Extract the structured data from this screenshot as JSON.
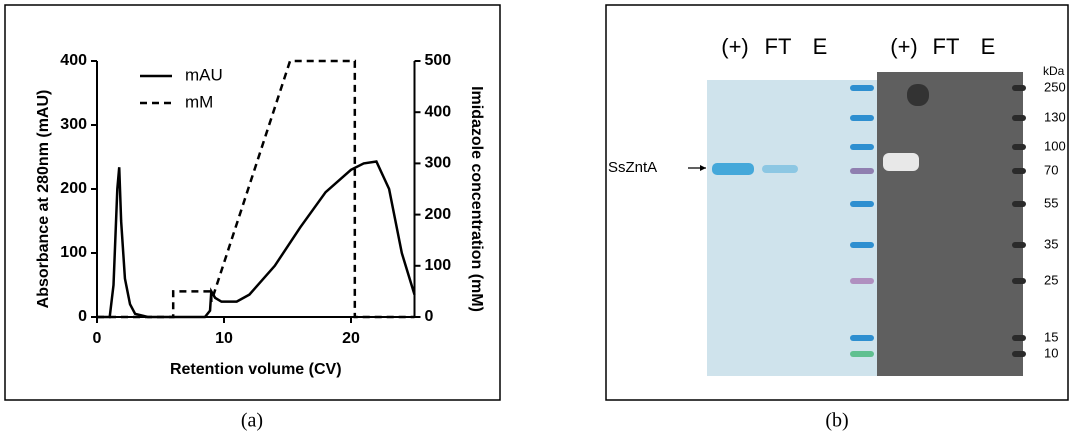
{
  "chart_data": {
    "type": "line",
    "x_label": "Retention volume (CV)",
    "y_label": "Absorbance at 280nm (mAU)",
    "y2_label": "Imidazole concentration (mM)",
    "xlim": [
      0,
      25
    ],
    "xticks": [
      0,
      10,
      20
    ],
    "ylim": [
      0,
      400
    ],
    "yticks": [
      0,
      100,
      200,
      300,
      400
    ],
    "y2lim": [
      0,
      500
    ],
    "y2ticks": [
      0,
      100,
      200,
      300,
      400,
      500
    ],
    "legend": "top-left",
    "caption": "(a)",
    "series": [
      {
        "name": "mAU",
        "color": "#000000",
        "dash": "solid",
        "x": [
          0,
          1,
          1.3,
          1.6,
          1.75,
          1.9,
          2.2,
          2.6,
          3,
          4,
          8.5,
          8.9,
          9,
          9.3,
          9.8,
          11,
          12,
          14,
          16,
          18,
          20,
          21,
          22,
          23,
          24,
          25
        ],
        "values": [
          0,
          0,
          50,
          200,
          234,
          150,
          60,
          20,
          5,
          0,
          0,
          10,
          40,
          30,
          24,
          24,
          35,
          80,
          140,
          195,
          230,
          240,
          243,
          200,
          100,
          35
        ]
      },
      {
        "name": "mM",
        "color": "#000000",
        "dash": "dashed",
        "axis": "y2",
        "x": [
          0,
          6,
          6,
          9,
          9,
          15.2,
          20.3,
          20.3,
          25
        ],
        "values": [
          0,
          0,
          50,
          50,
          30,
          500,
          500,
          0,
          0
        ]
      }
    ]
  },
  "gel": {
    "lanes_left": [
      "(+)",
      "FT",
      "E"
    ],
    "lanes_right": [
      "(+)",
      "FT",
      "E"
    ],
    "protein_label": "SsZntA",
    "unit": "kDa",
    "markers": [
      250,
      130,
      100,
      70,
      55,
      35,
      25,
      15,
      10
    ],
    "caption": "(b)"
  }
}
